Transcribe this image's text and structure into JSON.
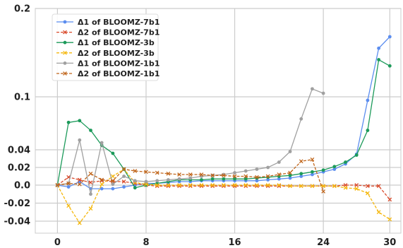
{
  "chart_data": {
    "type": "line",
    "title": "",
    "xlabel": "",
    "ylabel": "",
    "xlim": [
      -2,
      31
    ],
    "ylim": [
      -0.053,
      0.2
    ],
    "scale_note": "piecewise y-axis: ticks -0.04..0.04 at step 0.02 compressed with upper ticks 0.1 and 0.2",
    "x_ticks": [
      0,
      8,
      16,
      24,
      30
    ],
    "x_tick_labels": [
      "0",
      "8",
      "16",
      "24",
      "30"
    ],
    "y_ticks": [
      -0.04,
      -0.02,
      0.0,
      0.02,
      0.04,
      0.1,
      0.2
    ],
    "y_tick_labels": [
      "-0.04",
      "-0.02",
      "0.0",
      "0.02",
      "0.04",
      "0.1",
      "0.2"
    ],
    "grid": true,
    "legend_position": "top-left",
    "series": [
      {
        "name": "Δ1 of BLOOMZ-7b1",
        "color": "#5b8def",
        "dash": "solid",
        "marker": "circle",
        "x": [
          0,
          1,
          2,
          3,
          4,
          5,
          6,
          7,
          8,
          9,
          10,
          11,
          12,
          13,
          14,
          15,
          16,
          17,
          18,
          19,
          20,
          21,
          22,
          23,
          24,
          25,
          26,
          27,
          28,
          29,
          30
        ],
        "y": [
          0,
          -0.002,
          0.004,
          -0.004,
          -0.004,
          -0.004,
          -0.002,
          0,
          0.002,
          0.002,
          0.003,
          0.004,
          0.004,
          0.005,
          0.005,
          0.005,
          0.005,
          0.005,
          0.005,
          0.006,
          0.007,
          0.008,
          0.01,
          0.012,
          0.015,
          0.018,
          0.024,
          0.035,
          0.096,
          0.155,
          0.168
        ]
      },
      {
        "name": "Δ2 of BLOOMZ-7b1",
        "color": "#d94a2b",
        "dash": "dashed",
        "marker": "x",
        "x": [
          0,
          1,
          2,
          3,
          4,
          5,
          6,
          7,
          8,
          9,
          10,
          11,
          12,
          13,
          14,
          15,
          16,
          17,
          18,
          19,
          20,
          21,
          22,
          23,
          24,
          25,
          26,
          27,
          28,
          29,
          30
        ],
        "y": [
          0,
          0.009,
          0.006,
          0.003,
          0.005,
          0.004,
          0.004,
          0.002,
          0,
          -0.001,
          -0.001,
          -0.001,
          -0.001,
          -0.001,
          -0.001,
          -0.001,
          -0.001,
          -0.001,
          -0.001,
          -0.001,
          -0.001,
          -0.001,
          -0.001,
          -0.001,
          -0.001,
          -0.001,
          0,
          0,
          -0.001,
          -0.001,
          -0.016
        ]
      },
      {
        "name": "Δ1 of BLOOMZ-3b",
        "color": "#1c9a5a",
        "dash": "solid",
        "marker": "circle",
        "x": [
          0,
          1,
          2,
          3,
          4,
          5,
          6,
          7,
          8,
          9,
          10,
          11,
          12,
          13,
          14,
          15,
          16,
          17,
          18,
          19,
          20,
          21,
          22,
          23,
          24,
          25,
          26,
          27,
          28,
          29,
          30
        ],
        "y": [
          0,
          0.071,
          0.073,
          0.062,
          0.045,
          0.036,
          0.018,
          -0.003,
          0,
          0.002,
          0.004,
          0.006,
          0.006,
          0.006,
          0.007,
          0.007,
          0.007,
          0.007,
          0.008,
          0.009,
          0.01,
          0.011,
          0.013,
          0.015,
          0.017,
          0.021,
          0.026,
          0.034,
          0.062,
          0.142,
          0.135
        ]
      },
      {
        "name": "Δ2 of BLOOMZ-3b",
        "color": "#f5b80e",
        "dash": "dashed",
        "marker": "x",
        "x": [
          0,
          1,
          2,
          3,
          4,
          5,
          6,
          7,
          8,
          9,
          10,
          11,
          12,
          13,
          14,
          15,
          16,
          17,
          18,
          19,
          20,
          21,
          22,
          23,
          24,
          25,
          26,
          27,
          28,
          29,
          30
        ],
        "y": [
          0,
          -0.023,
          -0.042,
          -0.026,
          0.001,
          0.01,
          0.018,
          0.003,
          0.001,
          0,
          0,
          0,
          0,
          0,
          0,
          0,
          0,
          0,
          0,
          0,
          0,
          -0.001,
          -0.001,
          -0.001,
          -0.001,
          -0.001,
          -0.003,
          -0.004,
          -0.009,
          -0.03,
          -0.038
        ]
      },
      {
        "name": "Δ1 of BLOOMZ-1b1",
        "color": "#a0a0a0",
        "dash": "solid",
        "marker": "circle",
        "x": [
          0,
          1,
          2,
          3,
          4,
          5,
          6,
          7,
          8,
          9,
          10,
          11,
          12,
          13,
          14,
          15,
          16,
          17,
          18,
          19,
          20,
          21,
          22,
          23,
          24
        ],
        "y": [
          0,
          0.002,
          0.051,
          -0.01,
          0.048,
          0.001,
          0.01,
          0.005,
          0.004,
          0.005,
          0.006,
          0.007,
          0.008,
          0.01,
          0.011,
          0.012,
          0.014,
          0.016,
          0.018,
          0.02,
          0.026,
          0.038,
          0.075,
          0.109,
          0.104
        ]
      },
      {
        "name": "Δ2 of BLOOMZ-1b1",
        "color": "#c0651a",
        "dash": "dashed",
        "marker": "x",
        "x": [
          0,
          1,
          2,
          3,
          4,
          5,
          6,
          7,
          8,
          9,
          10,
          11,
          12,
          13,
          14,
          15,
          16,
          17,
          18,
          19,
          20,
          21,
          22,
          23,
          24
        ],
        "y": [
          0,
          0.002,
          0.001,
          0.013,
          0.006,
          0.005,
          0.018,
          0.016,
          0.015,
          0.014,
          0.013,
          0.012,
          0.012,
          0.012,
          0.011,
          0.011,
          0.01,
          0.01,
          0.009,
          0.01,
          0.012,
          0.014,
          0.027,
          0.029,
          -0.007
        ]
      }
    ]
  }
}
